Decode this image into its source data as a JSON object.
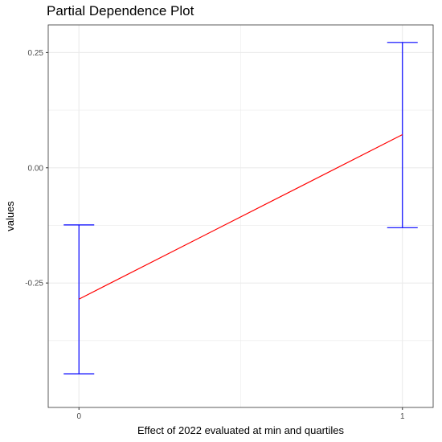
{
  "chart_data": {
    "type": "line",
    "title": "Partial Dependence Plot",
    "xlabel": "Effect of 2022 evaluated at min and quartiles",
    "ylabel": "values",
    "x": [
      0,
      1
    ],
    "x_tick_labels": [
      "0",
      "1"
    ],
    "xlim": [
      -0.095,
      1.095
    ],
    "ylim": [
      -0.52,
      0.31
    ],
    "y_ticks": [
      0.25,
      0.0,
      -0.25
    ],
    "y_tick_labels": [
      "0.25",
      "0.00",
      "-0.25"
    ],
    "y_minor_gridlines": [
      0.125,
      -0.125,
      -0.375
    ],
    "x_minor_gridlines": [
      0.5
    ],
    "grid": true,
    "series": [
      {
        "values": [
          -0.285,
          0.072
        ],
        "error_lower": [
          -0.447,
          -0.13
        ],
        "error_upper": [
          -0.124,
          0.272
        ]
      }
    ],
    "colors": {
      "line": "#ff0000",
      "error_bars": "#0000ff",
      "grid": "#ebebeb",
      "panel_border": "#333333"
    }
  }
}
